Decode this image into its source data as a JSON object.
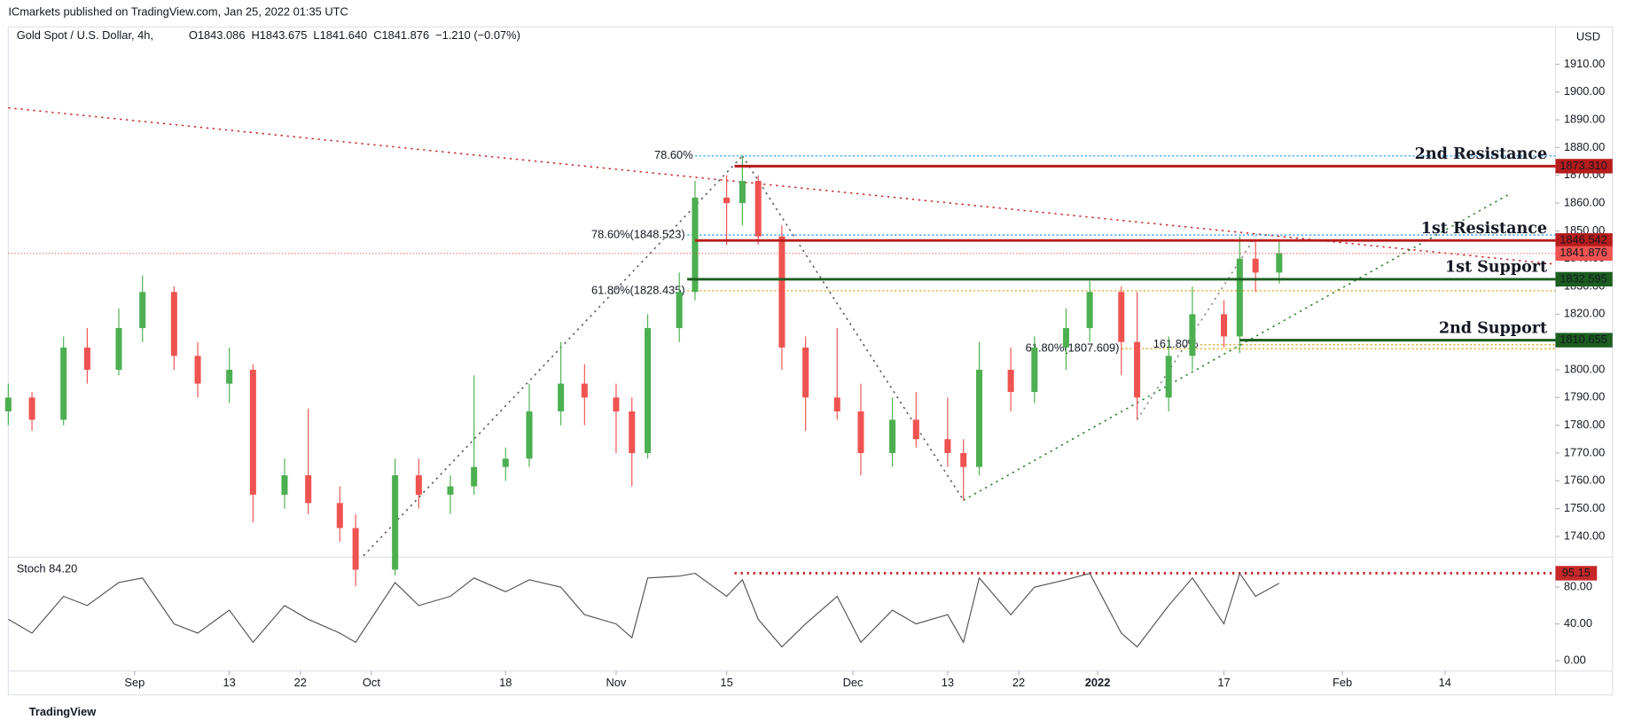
{
  "header": {
    "publisher": "ICmarkets published on TradingView.com, Jan 25, 2022 01:35 UTC",
    "footer": "TradingView"
  },
  "chart_data": {
    "type": "candlestick",
    "title": "Gold Spot / U.S. Dollar, 4h,",
    "legend": [
      "O1843.086",
      "H1843.675",
      "L1841.640",
      "C1841.876",
      "−1.210 (−0.07%)"
    ],
    "currency": "USD",
    "up_color": "#4caf50",
    "down_color": "#ef5350",
    "xlim": [
      "2021-08-16",
      "2022-02-28"
    ],
    "xticks": [
      {
        "value": "2021-09-01",
        "label": "Sep"
      },
      {
        "value": "2021-09-13",
        "label": "13"
      },
      {
        "value": "2021-09-22",
        "label": "22"
      },
      {
        "value": "2021-10-01",
        "label": "Oct"
      },
      {
        "value": "2021-10-18",
        "label": "18"
      },
      {
        "value": "2021-11-01",
        "label": "Nov"
      },
      {
        "value": "2021-11-15",
        "label": "15"
      },
      {
        "value": "2021-12-01",
        "label": "Dec"
      },
      {
        "value": "2021-12-13",
        "label": "13"
      },
      {
        "value": "2021-12-22",
        "label": "22"
      },
      {
        "value": "2022-01-01",
        "label": "2022"
      },
      {
        "value": "2022-01-17",
        "label": "17"
      },
      {
        "value": "2022-02-01",
        "label": "Feb"
      },
      {
        "value": "2022-02-14",
        "label": "14"
      }
    ],
    "ylim": [
      1732.9,
      1922.7
    ],
    "yticks": [
      {
        "value": 1740,
        "label": "1740.00"
      },
      {
        "value": 1750,
        "label": "1750.00"
      },
      {
        "value": 1760,
        "label": "1760.00"
      },
      {
        "value": 1770,
        "label": "1770.00"
      },
      {
        "value": 1780,
        "label": "1780.00"
      },
      {
        "value": 1790,
        "label": "1790.00"
      },
      {
        "value": 1800,
        "label": "1800.00"
      },
      {
        "value": 1810,
        "label": "1810.00"
      },
      {
        "value": 1820,
        "label": "1820.00"
      },
      {
        "value": 1830,
        "label": "1830.00"
      },
      {
        "value": 1840,
        "label": "1840.00"
      },
      {
        "value": 1850,
        "label": "1850.00"
      },
      {
        "value": 1860,
        "label": "1860.00"
      },
      {
        "value": 1870,
        "label": "1870.00"
      },
      {
        "value": 1880,
        "label": "1880.00"
      },
      {
        "value": 1890,
        "label": "1890.00"
      },
      {
        "value": 1900,
        "label": "1900.00"
      },
      {
        "value": 1910,
        "label": "1910.00"
      }
    ],
    "candles": [
      {
        "date": "2021-08-16",
        "open": 1785,
        "high": 1795,
        "low": 1780,
        "close": 1790
      },
      {
        "date": "2021-08-19",
        "open": 1790,
        "high": 1792,
        "low": 1778,
        "close": 1782
      },
      {
        "date": "2021-08-23",
        "open": 1782,
        "high": 1812,
        "low": 1780,
        "close": 1808
      },
      {
        "date": "2021-08-26",
        "open": 1808,
        "high": 1815,
        "low": 1795,
        "close": 1800
      },
      {
        "date": "2021-08-30",
        "open": 1800,
        "high": 1822,
        "low": 1798,
        "close": 1815
      },
      {
        "date": "2021-09-02",
        "open": 1815,
        "high": 1834,
        "low": 1810,
        "close": 1828
      },
      {
        "date": "2021-09-06",
        "open": 1828,
        "high": 1830,
        "low": 1800,
        "close": 1805
      },
      {
        "date": "2021-09-09",
        "open": 1805,
        "high": 1810,
        "low": 1790,
        "close": 1795
      },
      {
        "date": "2021-09-13",
        "open": 1795,
        "high": 1808,
        "low": 1788,
        "close": 1800
      },
      {
        "date": "2021-09-16",
        "open": 1800,
        "high": 1802,
        "low": 1745,
        "close": 1755
      },
      {
        "date": "2021-09-20",
        "open": 1755,
        "high": 1768,
        "low": 1750,
        "close": 1762
      },
      {
        "date": "2021-09-23",
        "open": 1762,
        "high": 1786,
        "low": 1748,
        "close": 1752
      },
      {
        "date": "2021-09-27",
        "open": 1752,
        "high": 1758,
        "low": 1738,
        "close": 1743
      },
      {
        "date": "2021-09-29",
        "open": 1743,
        "high": 1748,
        "low": 1722,
        "close": 1728
      },
      {
        "date": "2021-10-04",
        "open": 1728,
        "high": 1768,
        "low": 1726,
        "close": 1762
      },
      {
        "date": "2021-10-07",
        "open": 1762,
        "high": 1768,
        "low": 1750,
        "close": 1755
      },
      {
        "date": "2021-10-11",
        "open": 1755,
        "high": 1762,
        "low": 1748,
        "close": 1758
      },
      {
        "date": "2021-10-14",
        "open": 1758,
        "high": 1798,
        "low": 1755,
        "close": 1765
      },
      {
        "date": "2021-10-18",
        "open": 1765,
        "high": 1772,
        "low": 1760,
        "close": 1768
      },
      {
        "date": "2021-10-21",
        "open": 1768,
        "high": 1795,
        "low": 1765,
        "close": 1785
      },
      {
        "date": "2021-10-25",
        "open": 1785,
        "high": 1810,
        "low": 1780,
        "close": 1795
      },
      {
        "date": "2021-10-28",
        "open": 1795,
        "high": 1802,
        "low": 1780,
        "close": 1790
      },
      {
        "date": "2021-11-01",
        "open": 1790,
        "high": 1795,
        "low": 1770,
        "close": 1785
      },
      {
        "date": "2021-11-03",
        "open": 1785,
        "high": 1790,
        "low": 1758,
        "close": 1770
      },
      {
        "date": "2021-11-05",
        "open": 1770,
        "high": 1820,
        "low": 1768,
        "close": 1815
      },
      {
        "date": "2021-11-09",
        "open": 1815,
        "high": 1835,
        "low": 1810,
        "close": 1828
      },
      {
        "date": "2021-11-11",
        "open": 1828,
        "high": 1868,
        "low": 1825,
        "close": 1862
      },
      {
        "date": "2021-11-15",
        "open": 1862,
        "high": 1870,
        "low": 1845,
        "close": 1860
      },
      {
        "date": "2021-11-17",
        "open": 1860,
        "high": 1877,
        "low": 1852,
        "close": 1868
      },
      {
        "date": "2021-11-19",
        "open": 1868,
        "high": 1870,
        "low": 1845,
        "close": 1848
      },
      {
        "date": "2021-11-22",
        "open": 1848,
        "high": 1852,
        "low": 1800,
        "close": 1808
      },
      {
        "date": "2021-11-25",
        "open": 1808,
        "high": 1812,
        "low": 1778,
        "close": 1790
      },
      {
        "date": "2021-11-29",
        "open": 1790,
        "high": 1815,
        "low": 1782,
        "close": 1785
      },
      {
        "date": "2021-12-02",
        "open": 1785,
        "high": 1795,
        "low": 1762,
        "close": 1770
      },
      {
        "date": "2021-12-06",
        "open": 1770,
        "high": 1790,
        "low": 1765,
        "close": 1782
      },
      {
        "date": "2021-12-09",
        "open": 1782,
        "high": 1792,
        "low": 1772,
        "close": 1775
      },
      {
        "date": "2021-12-13",
        "open": 1775,
        "high": 1790,
        "low": 1765,
        "close": 1770
      },
      {
        "date": "2021-12-15",
        "open": 1770,
        "high": 1775,
        "low": 1753,
        "close": 1765
      },
      {
        "date": "2021-12-17",
        "open": 1765,
        "high": 1810,
        "low": 1762,
        "close": 1800
      },
      {
        "date": "2021-12-21",
        "open": 1800,
        "high": 1808,
        "low": 1785,
        "close": 1792
      },
      {
        "date": "2021-12-24",
        "open": 1792,
        "high": 1812,
        "low": 1788,
        "close": 1808
      },
      {
        "date": "2021-12-28",
        "open": 1808,
        "high": 1822,
        "low": 1800,
        "close": 1815
      },
      {
        "date": "2021-12-31",
        "open": 1815,
        "high": 1832,
        "low": 1810,
        "close": 1828
      },
      {
        "date": "2022-01-04",
        "open": 1828,
        "high": 1830,
        "low": 1798,
        "close": 1810
      },
      {
        "date": "2022-01-06",
        "open": 1810,
        "high": 1828,
        "low": 1782,
        "close": 1790
      },
      {
        "date": "2022-01-10",
        "open": 1790,
        "high": 1812,
        "low": 1785,
        "close": 1805
      },
      {
        "date": "2022-01-13",
        "open": 1805,
        "high": 1830,
        "low": 1800,
        "close": 1820
      },
      {
        "date": "2022-01-17",
        "open": 1820,
        "high": 1825,
        "low": 1808,
        "close": 1812
      },
      {
        "date": "2022-01-19",
        "open": 1812,
        "high": 1848,
        "low": 1806,
        "close": 1840
      },
      {
        "date": "2022-01-21",
        "open": 1840,
        "high": 1847,
        "low": 1828,
        "close": 1835
      },
      {
        "date": "2022-01-24",
        "open": 1835,
        "high": 1846,
        "low": 1831,
        "close": 1842
      }
    ],
    "current_price": {
      "value": 1841.876,
      "color": "#ef5350"
    },
    "levels": [
      {
        "name": "2nd Resistance",
        "value": {
          "value": 1873.31,
          "label": "1873.310"
        },
        "start": "2021-11-16",
        "color": "#b71c1c"
      },
      {
        "name": "1st Resistance",
        "value": 1846.542,
        "start": "2021-11-11",
        "color": "#b71c1c"
      },
      {
        "name": "1st Support",
        "value": 1832.595,
        "start": "2021-11-10",
        "color": "#1b5e20"
      },
      {
        "name": "2nd Support",
        "value": 1810.655,
        "start": "2022-01-19",
        "color": "#1b5e20"
      }
    ],
    "fibs": [
      {
        "label": "78.60%",
        "value": 1877,
        "start": "2021-11-11",
        "color": "#2196f3"
      },
      {
        "label": "78.60%(1848.523)",
        "value": 1848.523,
        "start": "2021-11-10",
        "color": "#2196f3"
      },
      {
        "label": "61.80%(1828.435)",
        "value": 1828.435,
        "start": "2021-11-10",
        "color": "#d4a017"
      },
      {
        "label": "61.80%(1807.609)",
        "value": 1807.609,
        "start": "2022-01-04",
        "color": "#d4a017"
      },
      {
        "label": "161.80%",
        "value": 1809,
        "start": "2022-01-14",
        "color": "#d4a017"
      }
    ],
    "trendlines": [
      {
        "from": [
          "2021-08-16",
          1894.3
        ],
        "to": [
          "2022-02-28",
          1838
        ],
        "color": "#c62828"
      },
      {
        "from": [
          "2021-12-15",
          1753
        ],
        "to": [
          "2022-02-22",
          1863
        ],
        "color": "#2e7d32"
      },
      {
        "from": [
          "2021-09-30",
          1733
        ],
        "to": [
          "2021-11-17",
          1877
        ],
        "color": "#555"
      },
      {
        "from": [
          "2021-11-17",
          1877
        ],
        "to": [
          "2021-12-15",
          1753
        ],
        "color": "#555"
      },
      {
        "from": [
          "2022-01-06",
          1782
        ],
        "to": [
          "2022-01-21",
          1848
        ],
        "color": "#888"
      }
    ],
    "stoch": {
      "title": "Stoch 84.20",
      "color": "#555",
      "ylim": [
        -7.9,
        110.4
      ],
      "yticks": [
        {
          "value": 0,
          "label": "0.00"
        },
        {
          "value": 40,
          "label": "40.00"
        },
        {
          "value": 80,
          "label": "80.00"
        }
      ],
      "level": {
        "value": 95.15,
        "start": "2021-11-16",
        "color": "#c62828"
      },
      "values": [
        45,
        30,
        70,
        60,
        85,
        90,
        40,
        30,
        55,
        20,
        60,
        45,
        30,
        20,
        85,
        60,
        70,
        90,
        75,
        88,
        80,
        50,
        40,
        25,
        90,
        92,
        95,
        70,
        88,
        45,
        15,
        40,
        70,
        20,
        55,
        40,
        50,
        20,
        90,
        50,
        80,
        88,
        95,
        30,
        15,
        60,
        90,
        40,
        95,
        70,
        84.2
      ]
    }
  }
}
